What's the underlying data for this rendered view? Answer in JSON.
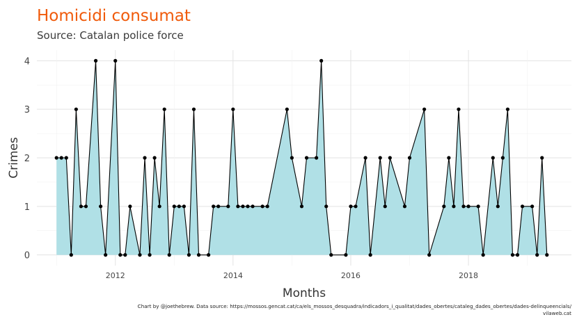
{
  "chart_data": {
    "type": "area",
    "title": "Homicidi consumat",
    "subtitle": "Source: Catalan police force",
    "xlabel": "Months",
    "ylabel": "Crimes",
    "caption_line1": "Chart by @joethebrew. Data source: https://mossos.gencat.cat/ca/els_mossos_desquadra/indicadors_i_qualitat/dades_obertes/cataleg_dades_obertes/dades-delinqueencials/",
    "caption_line2": "vilaweb.cat",
    "x_ticks": [
      "2012",
      "2014",
      "2016",
      "2018"
    ],
    "y_ticks": [
      "0",
      "1",
      "2",
      "3",
      "4"
    ],
    "xlim": [
      "2010-09",
      "2019-10"
    ],
    "ylim": [
      -0.22,
      4.22
    ],
    "grid": true,
    "colors": {
      "fill": "#b0e0e6",
      "line": "#000000",
      "title": "#f05a0a"
    },
    "x": [
      "2011-01",
      "2011-02",
      "2011-03",
      "2011-04",
      "2011-05",
      "2011-06",
      "2011-07",
      "2011-09",
      "2011-10",
      "2011-11",
      "2012-01",
      "2012-02",
      "2012-03",
      "2012-04",
      "2012-06",
      "2012-07",
      "2012-08",
      "2012-09",
      "2012-10",
      "2012-11",
      "2012-12",
      "2013-01",
      "2013-02",
      "2013-03",
      "2013-04",
      "2013-05",
      "2013-06",
      "2013-08",
      "2013-09",
      "2013-10",
      "2013-12",
      "2014-01",
      "2014-02",
      "2014-03",
      "2014-04",
      "2014-05",
      "2014-07",
      "2014-08",
      "2014-12",
      "2015-01",
      "2015-03",
      "2015-04",
      "2015-06",
      "2015-07",
      "2015-08",
      "2015-09",
      "2015-12",
      "2016-01",
      "2016-02",
      "2016-04",
      "2016-05",
      "2016-07",
      "2016-08",
      "2016-09",
      "2016-12",
      "2017-01",
      "2017-04",
      "2017-05",
      "2017-08",
      "2017-09",
      "2017-10",
      "2017-11",
      "2017-12",
      "2018-01",
      "2018-03",
      "2018-04",
      "2018-06",
      "2018-07",
      "2018-08",
      "2018-09",
      "2018-10",
      "2018-11",
      "2018-12",
      "2019-02",
      "2019-03",
      "2019-04",
      "2019-05"
    ],
    "values": [
      2,
      2,
      2,
      0,
      3,
      1,
      1,
      4,
      1,
      0,
      4,
      0,
      0,
      1,
      0,
      2,
      0,
      2,
      1,
      3,
      0,
      1,
      1,
      1,
      0,
      3,
      0,
      0,
      1,
      1,
      1,
      3,
      1,
      1,
      1,
      1,
      1,
      1,
      3,
      2,
      1,
      2,
      2,
      4,
      1,
      0,
      0,
      1,
      1,
      2,
      0,
      2,
      1,
      2,
      1,
      2,
      3,
      0,
      1,
      2,
      1,
      3,
      1,
      1,
      1,
      0,
      2,
      1,
      2,
      3,
      0,
      0,
      1,
      1,
      0,
      2,
      0
    ]
  }
}
